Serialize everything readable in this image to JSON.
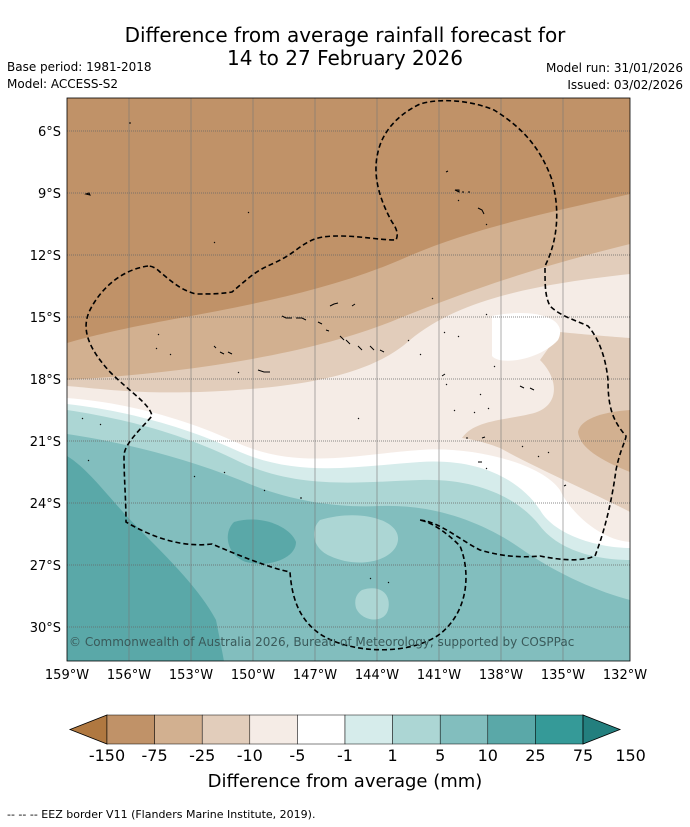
{
  "header": {
    "title_line1": "Difference from average rainfall forecast for",
    "title_line2": "14 to 27 February 2026",
    "base_period": "Base period: 1981-2018",
    "model": "Model: ACCESS-S2",
    "model_run": "Model run: 31/01/2026",
    "issued": "Issued: 03/02/2026"
  },
  "map": {
    "lat_labels": [
      "6°S",
      "9°S",
      "12°S",
      "15°S",
      "18°S",
      "21°S",
      "24°S",
      "27°S",
      "30°S"
    ],
    "lon_labels": [
      "159°W",
      "156°W",
      "153°W",
      "150°W",
      "147°W",
      "144°W",
      "141°W",
      "138°W",
      "135°W",
      "132°W"
    ],
    "copyright": "© Commonwealth of Australia 2026, Bureau of Meteorology, supported by COSPPac"
  },
  "colorbar": {
    "ticks": [
      "-150",
      "-75",
      "-25",
      "-10",
      "-5",
      "-1",
      "1",
      "5",
      "10",
      "25",
      "75",
      "150"
    ],
    "colors": [
      "#b07840",
      "#c09268",
      "#d2b090",
      "#e2cdbb",
      "#f5ece6",
      "#ffffff",
      "#d6eceb",
      "#acd6d4",
      "#82bebe",
      "#5aa8a8",
      "#359a98",
      "#237f7e"
    ],
    "label": "Difference from average (mm)"
  },
  "footnote": "-- -- -- EEZ border V11 (Flanders Marine Institute, 2019)."
}
